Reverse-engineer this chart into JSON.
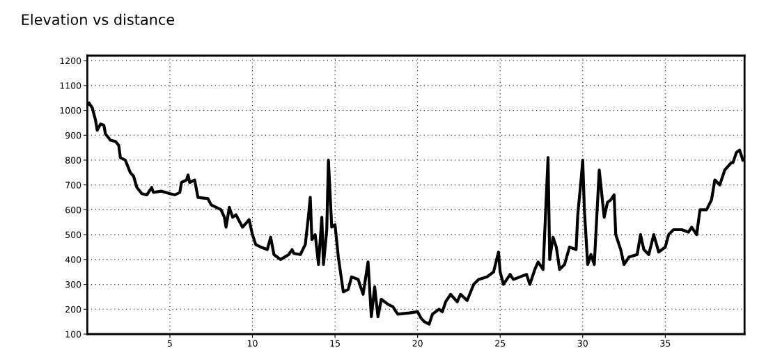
{
  "chart_data": {
    "type": "line",
    "title": "Elevation vs distance",
    "xlim": [
      0,
      39.8
    ],
    "xticks": [
      5,
      10,
      15,
      20,
      25,
      30,
      35
    ],
    "ylim": [
      100,
      1220
    ],
    "yticks": [
      100,
      200,
      300,
      400,
      500,
      600,
      700,
      800,
      900,
      1000,
      1100,
      1200
    ],
    "grid": true,
    "legend": false,
    "marker": "none",
    "line_style": "solid",
    "series": [
      {
        "color": "#000000",
        "x": [
          0,
          0.1,
          0.3,
          0.5,
          0.6,
          0.8,
          1.0,
          1.1,
          1.4,
          1.7,
          1.9,
          2.0,
          2.3,
          2.6,
          2.8,
          3.0,
          3.3,
          3.6,
          3.9,
          4.0,
          4.5,
          5.0,
          5.3,
          5.6,
          5.7,
          6.0,
          6.1,
          6.2,
          6.5,
          6.7,
          7.3,
          7.5,
          8.1,
          8.3,
          8.4,
          8.6,
          8.8,
          9.0,
          9.4,
          9.8,
          10.0,
          10.2,
          10.5,
          10.9,
          11.1,
          11.3,
          11.7,
          12.2,
          12.4,
          12.5,
          12.9,
          13.2,
          13.4,
          13.5,
          13.6,
          13.8,
          14.0,
          14.2,
          14.3,
          14.5,
          14.6,
          14.8,
          15.0,
          15.2,
          15.5,
          15.8,
          16.0,
          16.4,
          16.7,
          17.0,
          17.2,
          17.4,
          17.6,
          17.8,
          18.2,
          18.5,
          18.8,
          19.5,
          20.0,
          20.2,
          20.4,
          20.7,
          20.9,
          21.3,
          21.5,
          21.7,
          22.0,
          22.4,
          22.6,
          23.0,
          23.4,
          23.7,
          24.2,
          24.6,
          24.9,
          25.0,
          25.2,
          25.6,
          25.8,
          26.2,
          26.6,
          26.8,
          27.1,
          27.3,
          27.6,
          27.9,
          28.0,
          28.2,
          28.4,
          28.6,
          28.9,
          29.2,
          29.6,
          29.7,
          29.9,
          30.0,
          30.1,
          30.3,
          30.5,
          30.7,
          31.0,
          31.3,
          31.5,
          31.7,
          31.9,
          32.0,
          32.3,
          32.5,
          32.8,
          33.3,
          33.5,
          33.7,
          34.0,
          34.3,
          34.6,
          35.0,
          35.2,
          35.5,
          36.0,
          36.4,
          36.6,
          36.9,
          37.1,
          37.5,
          37.8,
          38.0,
          38.3,
          38.6,
          39.0,
          39.1,
          39.3,
          39.5,
          39.7
        ],
        "values": [
          1020,
          1030,
          1010,
          960,
          920,
          945,
          940,
          905,
          880,
          875,
          860,
          810,
          800,
          750,
          735,
          690,
          665,
          660,
          690,
          670,
          675,
          665,
          660,
          670,
          710,
          720,
          740,
          710,
          720,
          650,
          645,
          620,
          600,
          570,
          530,
          610,
          570,
          580,
          530,
          560,
          500,
          460,
          450,
          440,
          490,
          420,
          400,
          420,
          440,
          425,
          420,
          460,
          580,
          650,
          480,
          500,
          380,
          570,
          380,
          520,
          800,
          530,
          540,
          410,
          270,
          280,
          330,
          320,
          260,
          390,
          170,
          290,
          170,
          240,
          220,
          210,
          180,
          185,
          190,
          165,
          150,
          140,
          180,
          200,
          190,
          230,
          260,
          230,
          260,
          235,
          300,
          320,
          330,
          350,
          430,
          350,
          300,
          340,
          320,
          330,
          340,
          300,
          360,
          390,
          360,
          810,
          400,
          490,
          450,
          360,
          380,
          450,
          440,
          580,
          720,
          800,
          600,
          380,
          420,
          380,
          760,
          570,
          630,
          640,
          660,
          500,
          440,
          380,
          410,
          420,
          500,
          440,
          420,
          500,
          430,
          450,
          500,
          520,
          520,
          510,
          530,
          500,
          600,
          600,
          640,
          720,
          700,
          760,
          790,
          790,
          830,
          840,
          800
        ]
      }
    ]
  }
}
